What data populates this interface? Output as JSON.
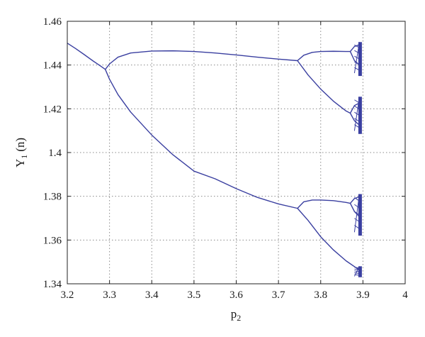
{
  "chart_data": {
    "type": "line",
    "title": "",
    "xlabel_main": "p",
    "xlabel_sub": "2",
    "ylabel_main": "Y",
    "ylabel_sub": "1",
    "ylabel_suffix": "(n)",
    "xlim": [
      3.2,
      4.0
    ],
    "ylim": [
      1.34,
      1.46
    ],
    "xticks": [
      3.2,
      3.3,
      3.4,
      3.5,
      3.6,
      3.7,
      3.8,
      3.9,
      4.0
    ],
    "xtick_labels": [
      "3.2",
      "3.3",
      "3.4",
      "3.5",
      "3.6",
      "3.7",
      "3.8",
      "3.9",
      "4"
    ],
    "yticks": [
      1.34,
      1.36,
      1.38,
      1.4,
      1.42,
      1.44,
      1.46
    ],
    "ytick_labels": [
      "1.34",
      "1.36",
      "1.38",
      "1.4",
      "1.42",
      "1.44",
      "1.46"
    ],
    "grid": true,
    "line_color": "#3a3fa0",
    "series": [
      {
        "branch": "period-1",
        "x": [
          3.2,
          3.22,
          3.24,
          3.26,
          3.28,
          3.29
        ],
        "y": [
          1.45,
          1.4475,
          1.4448,
          1.442,
          1.4394,
          1.438
        ]
      },
      {
        "branch": "period-2-upper",
        "x": [
          3.29,
          3.3,
          3.32,
          3.35,
          3.4,
          3.45,
          3.5,
          3.55,
          3.6,
          3.65,
          3.7,
          3.745
        ],
        "y": [
          1.438,
          1.4405,
          1.4436,
          1.4455,
          1.4464,
          1.4465,
          1.4462,
          1.4455,
          1.4446,
          1.4436,
          1.4427,
          1.442
        ]
      },
      {
        "branch": "period-2-lower",
        "x": [
          3.29,
          3.3,
          3.32,
          3.35,
          3.4,
          3.45,
          3.5,
          3.55,
          3.6,
          3.65,
          3.7,
          3.745
        ],
        "y": [
          1.438,
          1.4335,
          1.4265,
          1.4185,
          1.408,
          1.399,
          1.3915,
          1.388,
          1.3835,
          1.3795,
          1.3765,
          1.3745
        ]
      },
      {
        "branch": "period-4-a",
        "x": [
          3.745,
          3.76,
          3.78,
          3.8,
          3.83,
          3.86,
          3.87
        ],
        "y": [
          1.442,
          1.4445,
          1.4458,
          1.4462,
          1.4463,
          1.4462,
          1.4462
        ]
      },
      {
        "branch": "period-4-b",
        "x": [
          3.745,
          3.77,
          3.8,
          3.83,
          3.86,
          3.87
        ],
        "y": [
          1.442,
          1.4355,
          1.429,
          1.4235,
          1.419,
          1.418
        ]
      },
      {
        "branch": "period-4-c",
        "x": [
          3.745,
          3.76,
          3.78,
          3.8,
          3.83,
          3.86,
          3.87
        ],
        "y": [
          1.3745,
          1.3775,
          1.3783,
          1.3783,
          1.378,
          1.3772,
          1.3768
        ]
      },
      {
        "branch": "period-4-d",
        "x": [
          3.745,
          3.77,
          3.8,
          3.83,
          3.86,
          3.89,
          3.895
        ],
        "y": [
          1.3745,
          1.369,
          1.3615,
          1.3555,
          1.3505,
          1.3465,
          1.3458
        ]
      },
      {
        "branch": "period-8-a",
        "x": [
          3.87,
          3.88,
          3.895
        ],
        "y": [
          1.4462,
          1.4485,
          1.4495
        ]
      },
      {
        "branch": "period-8-b",
        "x": [
          3.87,
          3.88,
          3.895
        ],
        "y": [
          1.4462,
          1.442,
          1.4395
        ]
      },
      {
        "branch": "period-8-c",
        "x": [
          3.87,
          3.88,
          3.895
        ],
        "y": [
          1.418,
          1.4215,
          1.423
        ]
      },
      {
        "branch": "period-8-d",
        "x": [
          3.87,
          3.88,
          3.895
        ],
        "y": [
          1.418,
          1.4145,
          1.412
        ]
      },
      {
        "branch": "period-8-e",
        "x": [
          3.87,
          3.88,
          3.895
        ],
        "y": [
          1.3768,
          1.379,
          1.38
        ]
      },
      {
        "branch": "period-8-f",
        "x": [
          3.87,
          3.88,
          3.895
        ],
        "y": [
          1.3768,
          1.373,
          1.37
        ]
      }
    ],
    "chaotic_bands": [
      {
        "x": 3.895,
        "y_min": 1.435,
        "y_max": 1.4505
      },
      {
        "x": 3.895,
        "y_min": 1.4085,
        "y_max": 1.4255
      },
      {
        "x": 3.895,
        "y_min": 1.362,
        "y_max": 1.381
      },
      {
        "x": 3.895,
        "y_min": 1.343,
        "y_max": 1.348
      }
    ]
  }
}
